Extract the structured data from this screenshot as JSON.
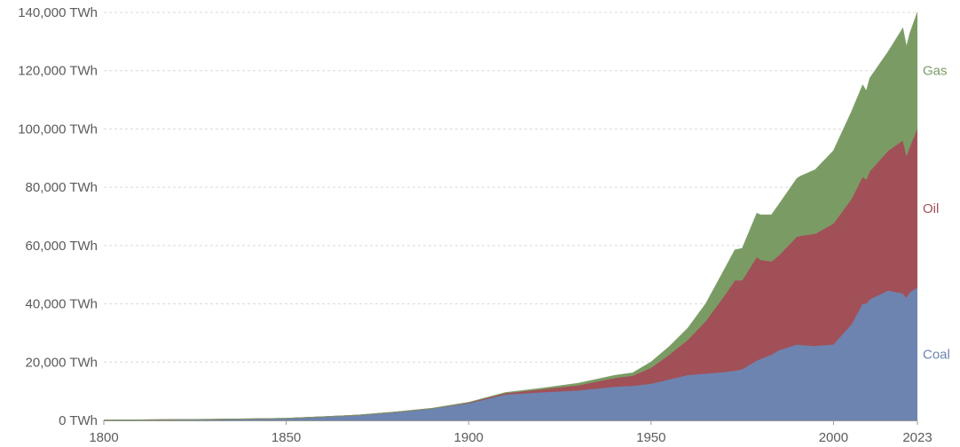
{
  "chart_data": {
    "type": "area",
    "stacked": true,
    "title": "",
    "xlabel": "",
    "ylabel": "",
    "x_range": [
      1800,
      2023
    ],
    "ylim": [
      0,
      140000
    ],
    "grid": "horizontal dashed",
    "legend_placement": "right, inline labels at series ends",
    "y_ticks": [
      "0 TWh",
      "20,000 TWh",
      "40,000 TWh",
      "60,000 TWh",
      "80,000 TWh",
      "100,000 TWh",
      "120,000 TWh",
      "140,000 TWh"
    ],
    "y_tick_values": [
      0,
      20000,
      40000,
      60000,
      80000,
      100000,
      120000,
      140000
    ],
    "x_ticks": [
      "1800",
      "1850",
      "1900",
      "1950",
      "2000",
      "2023"
    ],
    "x_tick_values": [
      1800,
      1850,
      1900,
      1950,
      2000,
      2023
    ],
    "x": [
      1800,
      1810,
      1820,
      1830,
      1840,
      1850,
      1860,
      1870,
      1880,
      1890,
      1900,
      1910,
      1920,
      1930,
      1940,
      1945,
      1950,
      1955,
      1960,
      1965,
      1970,
      1973,
      1975,
      1979,
      1980,
      1983,
      1985,
      1990,
      1991,
      1995,
      2000,
      2005,
      2008,
      2009,
      2010,
      2015,
      2019,
      2020,
      2021,
      2023
    ],
    "series": [
      {
        "name": "Coal",
        "color": "#6d84b0",
        "values": [
          100,
          150,
          250,
          350,
          500,
          700,
          1200,
          1800,
          2800,
          4000,
          5800,
          8800,
          9600,
          10200,
          11500,
          11800,
          12500,
          14000,
          15500,
          16000,
          16500,
          17000,
          17500,
          20500,
          21000,
          22500,
          24000,
          26000,
          25800,
          25500,
          26000,
          33000,
          40000,
          40000,
          41500,
          44500,
          43500,
          42000,
          44000,
          45500
        ]
      },
      {
        "name": "Oil",
        "color": "#a15058",
        "values": [
          0,
          0,
          0,
          0,
          0,
          0,
          0,
          10,
          50,
          100,
          300,
          500,
          1000,
          1800,
          3000,
          3500,
          5500,
          8500,
          12000,
          18000,
          26000,
          31000,
          30500,
          35500,
          34000,
          32000,
          32500,
          37000,
          37500,
          38500,
          41500,
          43000,
          43500,
          42500,
          44000,
          48000,
          52500,
          48500,
          50000,
          54500
        ]
      },
      {
        "name": "Gas",
        "color": "#7a9c64",
        "values": [
          0,
          0,
          0,
          0,
          0,
          0,
          0,
          0,
          0,
          0,
          50,
          200,
          400,
          700,
          900,
          1000,
          2000,
          2800,
          4000,
          6000,
          9000,
          10500,
          11000,
          15000,
          15500,
          16000,
          17500,
          20000,
          20500,
          22000,
          25000,
          30000,
          31500,
          30500,
          32000,
          34000,
          38500,
          37500,
          39000,
          40000
        ]
      }
    ]
  }
}
